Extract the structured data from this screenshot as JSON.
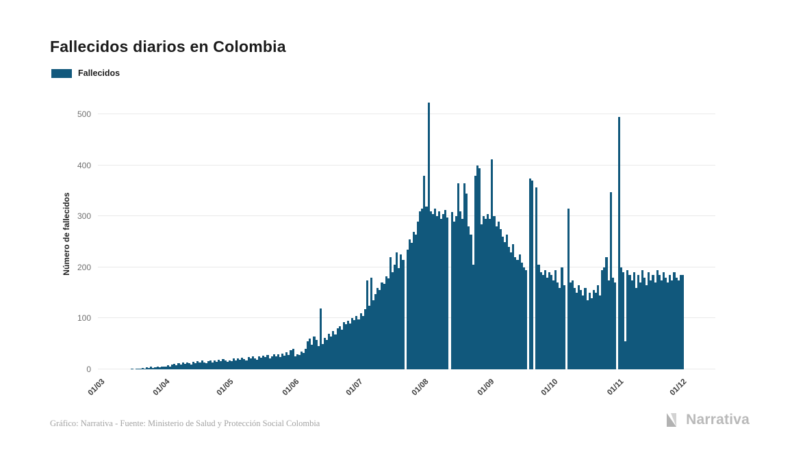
{
  "title": "Fallecidos diarios en Colombia",
  "legend": {
    "label": "Fallecidos",
    "color": "#11587c"
  },
  "footer": {
    "source": "Gráfico: Narrativa - Fuente: Ministerio de Salud y Protección Social Colombia",
    "brand": "Narrativa"
  },
  "chart_data": {
    "type": "bar",
    "title": "Fallecidos diarios en Colombia",
    "xlabel": "",
    "ylabel": "Número de fallecidos",
    "series_name": "Fallecidos",
    "bar_color": "#11587c",
    "ylim": [
      0,
      530
    ],
    "yticks": [
      0,
      100,
      200,
      300,
      400,
      500
    ],
    "grid": "horizontal",
    "legend_position": "top-left",
    "x_start_label": "01/03",
    "xtick_labels": [
      "01/03",
      "01/04",
      "01/05",
      "01/06",
      "01/07",
      "01/08",
      "01/09",
      "01/10",
      "01/11",
      "01/12"
    ],
    "xtick_day_index": [
      0,
      31,
      61,
      92,
      122,
      153,
      184,
      214,
      245,
      275
    ],
    "values": [
      0,
      0,
      0,
      0,
      0,
      0,
      0,
      0,
      0,
      0,
      0,
      0,
      0,
      0,
      0,
      1,
      0,
      2,
      1,
      2,
      3,
      2,
      4,
      3,
      5,
      3,
      4,
      6,
      4,
      5,
      6,
      5,
      8,
      6,
      9,
      11,
      8,
      12,
      10,
      13,
      11,
      14,
      12,
      10,
      15,
      12,
      16,
      13,
      17,
      14,
      12,
      16,
      18,
      14,
      17,
      15,
      19,
      16,
      20,
      17,
      15,
      18,
      16,
      21,
      17,
      22,
      19,
      23,
      20,
      18,
      24,
      21,
      25,
      22,
      19,
      26,
      23,
      27,
      24,
      28,
      22,
      26,
      30,
      25,
      29,
      24,
      31,
      27,
      33,
      28,
      38,
      40,
      25,
      30,
      28,
      35,
      32,
      40,
      55,
      60,
      48,
      65,
      58,
      45,
      120,
      50,
      62,
      58,
      70,
      65,
      75,
      68,
      80,
      85,
      78,
      92,
      88,
      95,
      90,
      100,
      96,
      105,
      98,
      110,
      105,
      118,
      175,
      125,
      180,
      135,
      148,
      160,
      155,
      170,
      168,
      182,
      178,
      220,
      190,
      205,
      230,
      198,
      225,
      215,
      0,
      235,
      255,
      248,
      270,
      265,
      290,
      310,
      315,
      380,
      320,
      523,
      310,
      305,
      315,
      300,
      310,
      295,
      305,
      312,
      298,
      0,
      308,
      290,
      300,
      365,
      310,
      295,
      365,
      345,
      280,
      265,
      205,
      380,
      400,
      395,
      285,
      300,
      295,
      305,
      295,
      412,
      300,
      280,
      290,
      275,
      260,
      250,
      265,
      240,
      230,
      245,
      220,
      215,
      225,
      210,
      200,
      195,
      0,
      375,
      370,
      0,
      357,
      205,
      190,
      185,
      195,
      180,
      190,
      185,
      175,
      195,
      170,
      160,
      200,
      165,
      0,
      315,
      170,
      175,
      160,
      150,
      165,
      155,
      145,
      160,
      135,
      150,
      140,
      155,
      150,
      165,
      145,
      195,
      200,
      220,
      175,
      347,
      180,
      170,
      0,
      495,
      200,
      190,
      55,
      195,
      185,
      175,
      190,
      160,
      185,
      170,
      195,
      180,
      165,
      190,
      175,
      185,
      170,
      195,
      185,
      175,
      190,
      180,
      170,
      185,
      175,
      190,
      180,
      175,
      185,
      185
    ]
  }
}
